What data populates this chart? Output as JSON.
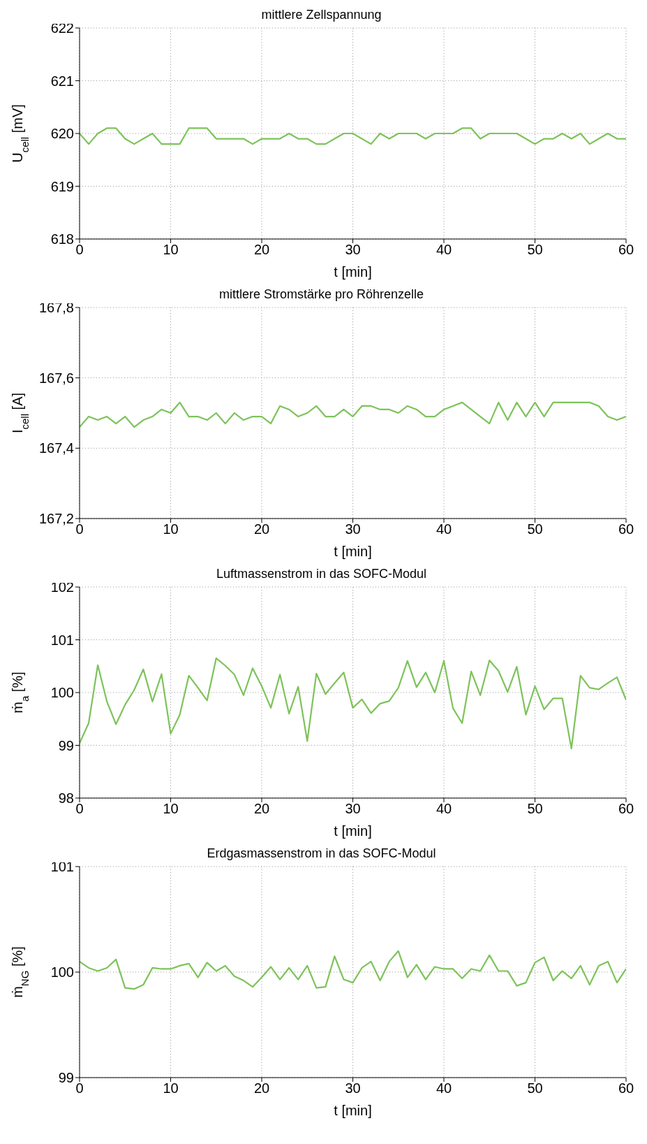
{
  "chart_data": [
    {
      "type": "line",
      "title": "mittlere Zellspannung",
      "xlabel": "t [min]",
      "ylabel": "U$_{cell}$ [mV]",
      "grid": true,
      "xlim": [
        0,
        60
      ],
      "xticks": [
        0,
        10,
        20,
        30,
        40,
        50,
        60
      ],
      "ylim": [
        618,
        622
      ],
      "yticks": [
        618,
        619,
        620,
        621,
        622
      ],
      "x": [
        0,
        1,
        2,
        3,
        4,
        5,
        6,
        7,
        8,
        9,
        10,
        11,
        12,
        13,
        14,
        15,
        16,
        17,
        18,
        19,
        20,
        21,
        22,
        23,
        24,
        25,
        26,
        27,
        28,
        29,
        30,
        31,
        32,
        33,
        34,
        35,
        36,
        37,
        38,
        39,
        40,
        41,
        42,
        43,
        44,
        45,
        46,
        47,
        48,
        49,
        50,
        51,
        52,
        53,
        54,
        55,
        56,
        57,
        58,
        59,
        60
      ],
      "series": [
        {
          "color": "#7dc35a",
          "values": [
            620.0,
            619.8,
            620.0,
            620.1,
            620.1,
            619.9,
            619.8,
            619.9,
            620.0,
            619.8,
            619.8,
            619.8,
            620.1,
            620.1,
            620.1,
            619.9,
            619.9,
            619.9,
            619.9,
            619.8,
            619.9,
            619.9,
            619.9,
            620.0,
            619.9,
            619.9,
            619.8,
            619.8,
            619.9,
            620.0,
            620.0,
            619.9,
            619.8,
            620.0,
            619.9,
            620.0,
            620.0,
            620.0,
            619.9,
            620.0,
            620.0,
            620.0,
            620.1,
            620.1,
            619.9,
            620.0,
            620.0,
            620.0,
            620.0,
            619.9,
            619.8,
            619.9,
            619.9,
            620.0,
            619.9,
            620.0,
            619.8,
            619.9,
            620.0,
            619.9,
            619.9
          ]
        }
      ]
    },
    {
      "type": "line",
      "title": "mittlere Stromstärke pro Röhrenzelle",
      "xlabel": "t [min]",
      "ylabel": "I$_{cell}$ [A]",
      "grid": true,
      "xlim": [
        0,
        60
      ],
      "xticks": [
        0,
        10,
        20,
        30,
        40,
        50,
        60
      ],
      "ylim": [
        167.2,
        167.8
      ],
      "yticks": [
        {
          "value": 167.2,
          "label": "167,2"
        },
        {
          "value": 167.4,
          "label": "167,4"
        },
        {
          "value": 167.6,
          "label": "167,6"
        },
        {
          "value": 167.8,
          "label": "167,8"
        }
      ],
      "x": [
        0,
        1,
        2,
        3,
        4,
        5,
        6,
        7,
        8,
        9,
        10,
        11,
        12,
        13,
        14,
        15,
        16,
        17,
        18,
        19,
        20,
        21,
        22,
        23,
        24,
        25,
        26,
        27,
        28,
        29,
        30,
        31,
        32,
        33,
        34,
        35,
        36,
        37,
        38,
        39,
        40,
        41,
        42,
        43,
        44,
        45,
        46,
        47,
        48,
        49,
        50,
        51,
        52,
        53,
        54,
        55,
        56,
        57,
        58,
        59,
        60
      ],
      "series": [
        {
          "color": "#7dc35a",
          "values": [
            167.46,
            167.49,
            167.48,
            167.49,
            167.47,
            167.49,
            167.46,
            167.48,
            167.49,
            167.51,
            167.5,
            167.53,
            167.49,
            167.49,
            167.48,
            167.5,
            167.47,
            167.5,
            167.48,
            167.49,
            167.49,
            167.47,
            167.52,
            167.51,
            167.49,
            167.5,
            167.52,
            167.49,
            167.49,
            167.51,
            167.49,
            167.52,
            167.52,
            167.51,
            167.51,
            167.5,
            167.52,
            167.51,
            167.49,
            167.49,
            167.51,
            167.52,
            167.53,
            167.51,
            167.49,
            167.47,
            167.53,
            167.48,
            167.53,
            167.49,
            167.53,
            167.49,
            167.53,
            167.53,
            167.53,
            167.53,
            167.53,
            167.52,
            167.49,
            167.48,
            167.49
          ]
        }
      ]
    },
    {
      "type": "line",
      "title": "Luftmassenstrom in das SOFC-Modul",
      "xlabel": "t [min]",
      "ylabel": "ṁ$_{a}$ [%]",
      "grid": true,
      "xlim": [
        0,
        60
      ],
      "xticks": [
        0,
        10,
        20,
        30,
        40,
        50,
        60
      ],
      "ylim": [
        98,
        102
      ],
      "yticks": [
        98,
        99,
        100,
        101,
        102
      ],
      "x": [
        0,
        1,
        2,
        3,
        4,
        5,
        6,
        7,
        8,
        9,
        10,
        11,
        12,
        13,
        14,
        15,
        16,
        17,
        18,
        19,
        20,
        21,
        22,
        23,
        24,
        25,
        26,
        27,
        28,
        29,
        30,
        31,
        32,
        33,
        34,
        35,
        36,
        37,
        38,
        39,
        40,
        41,
        42,
        43,
        44,
        45,
        46,
        47,
        48,
        49,
        50,
        51,
        52,
        53,
        54,
        55,
        56,
        57,
        58,
        59,
        60
      ],
      "series": [
        {
          "color": "#7dc35a",
          "values": [
            99.04,
            99.42,
            100.52,
            99.83,
            99.4,
            99.77,
            100.05,
            100.44,
            99.83,
            100.35,
            99.22,
            99.58,
            100.32,
            100.09,
            99.85,
            100.65,
            100.51,
            100.34,
            99.95,
            100.46,
            100.12,
            99.71,
            100.34,
            99.6,
            100.11,
            99.08,
            100.36,
            99.97,
            100.18,
            100.38,
            99.71,
            99.87,
            99.61,
            99.79,
            99.84,
            100.09,
            100.6,
            100.1,
            100.38,
            100.0,
            100.6,
            99.7,
            99.42,
            100.4,
            99.95,
            100.61,
            100.41,
            100.01,
            100.49,
            99.58,
            100.12,
            99.68,
            99.89,
            99.89,
            98.94,
            100.32,
            100.09,
            100.06,
            100.18,
            100.29,
            99.86
          ]
        }
      ]
    },
    {
      "type": "line",
      "title": "Erdgasmassenstrom in das SOFC-Modul",
      "xlabel": "t [min]",
      "ylabel": "ṁ$_{NG}$ [%]",
      "grid": true,
      "xlim": [
        0,
        60
      ],
      "xticks": [
        0,
        10,
        20,
        30,
        40,
        50,
        60
      ],
      "ylim": [
        99,
        101
      ],
      "yticks": [
        99,
        100,
        101
      ],
      "x": [
        0,
        1,
        2,
        3,
        4,
        5,
        6,
        7,
        8,
        9,
        10,
        11,
        12,
        13,
        14,
        15,
        16,
        17,
        18,
        19,
        20,
        21,
        22,
        23,
        24,
        25,
        26,
        27,
        28,
        29,
        30,
        31,
        32,
        33,
        34,
        35,
        36,
        37,
        38,
        39,
        40,
        41,
        42,
        43,
        44,
        45,
        46,
        47,
        48,
        49,
        50,
        51,
        52,
        53,
        54,
        55,
        56,
        57,
        58,
        59,
        60
      ],
      "series": [
        {
          "color": "#7dc35a",
          "values": [
            100.1,
            100.04,
            100.01,
            100.04,
            100.12,
            99.85,
            99.84,
            99.88,
            100.04,
            100.03,
            100.03,
            100.06,
            100.08,
            99.95,
            100.09,
            100.01,
            100.06,
            99.96,
            99.92,
            99.86,
            99.95,
            100.05,
            99.93,
            100.04,
            99.93,
            100.06,
            99.85,
            99.86,
            100.15,
            99.93,
            99.9,
            100.04,
            100.1,
            99.92,
            100.1,
            100.2,
            99.95,
            100.07,
            99.93,
            100.05,
            100.03,
            100.03,
            99.94,
            100.03,
            100.01,
            100.16,
            100.01,
            100.01,
            99.87,
            99.9,
            100.09,
            100.14,
            99.92,
            100.01,
            99.94,
            100.06,
            99.88,
            100.06,
            100.1,
            99.9,
            100.03
          ]
        }
      ]
    }
  ]
}
